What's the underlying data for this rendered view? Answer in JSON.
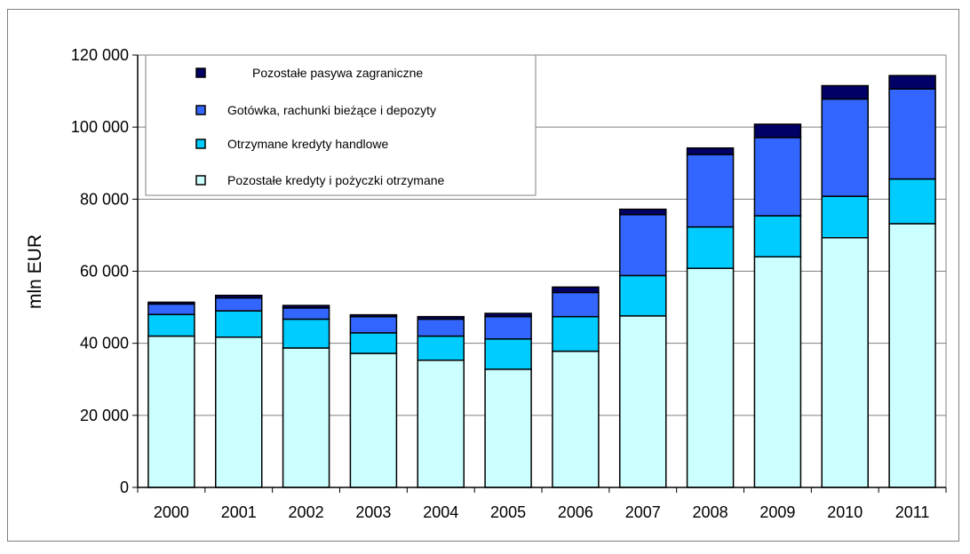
{
  "chart_data": {
    "type": "bar",
    "stacked": true,
    "title": "",
    "xlabel": "",
    "ylabel": "mln EUR",
    "ylim": [
      0,
      120000
    ],
    "yticks": [
      0,
      20000,
      40000,
      60000,
      80000,
      100000,
      120000
    ],
    "ytick_labels": [
      "0",
      "20 000",
      "40 000",
      "60 000",
      "80 000",
      "100 000",
      "120 000"
    ],
    "grid": true,
    "legend_position": "top-left",
    "categories": [
      "2000",
      "2001",
      "2002",
      "2003",
      "2004",
      "2005",
      "2006",
      "2007",
      "2008",
      "2009",
      "2010",
      "2011"
    ],
    "series": [
      {
        "name": "Pozostałe kredyty i pożyczki otrzymane",
        "color": "#ccffff",
        "values": [
          42000,
          41700,
          38700,
          37200,
          35300,
          32800,
          37800,
          47600,
          60800,
          64000,
          69300,
          73200
        ]
      },
      {
        "name": "Otrzymane kredyty handlowe",
        "color": "#00ccff",
        "values": [
          6000,
          7300,
          8000,
          5700,
          6700,
          8400,
          9600,
          11200,
          11500,
          11400,
          11500,
          12400
        ]
      },
      {
        "name": "Gotówka, rachunki bieżące i depozyty",
        "color": "#3366ff",
        "values": [
          2900,
          3600,
          3100,
          4500,
          4700,
          6200,
          6700,
          16900,
          20100,
          21700,
          27000,
          25000
        ]
      },
      {
        "name": "Pozostałe pasywa zagraniczne",
        "color": "#000066",
        "values": [
          500,
          700,
          700,
          500,
          700,
          900,
          1500,
          1500,
          1800,
          3700,
          3700,
          3700
        ]
      }
    ],
    "legend_order": [
      "Pozostałe pasywa zagraniczne",
      "Gotówka, rachunki bieżące i depozyty",
      "Otrzymane kredyty handlowe",
      "Pozostałe kredyty i pożyczki otrzymane"
    ]
  }
}
